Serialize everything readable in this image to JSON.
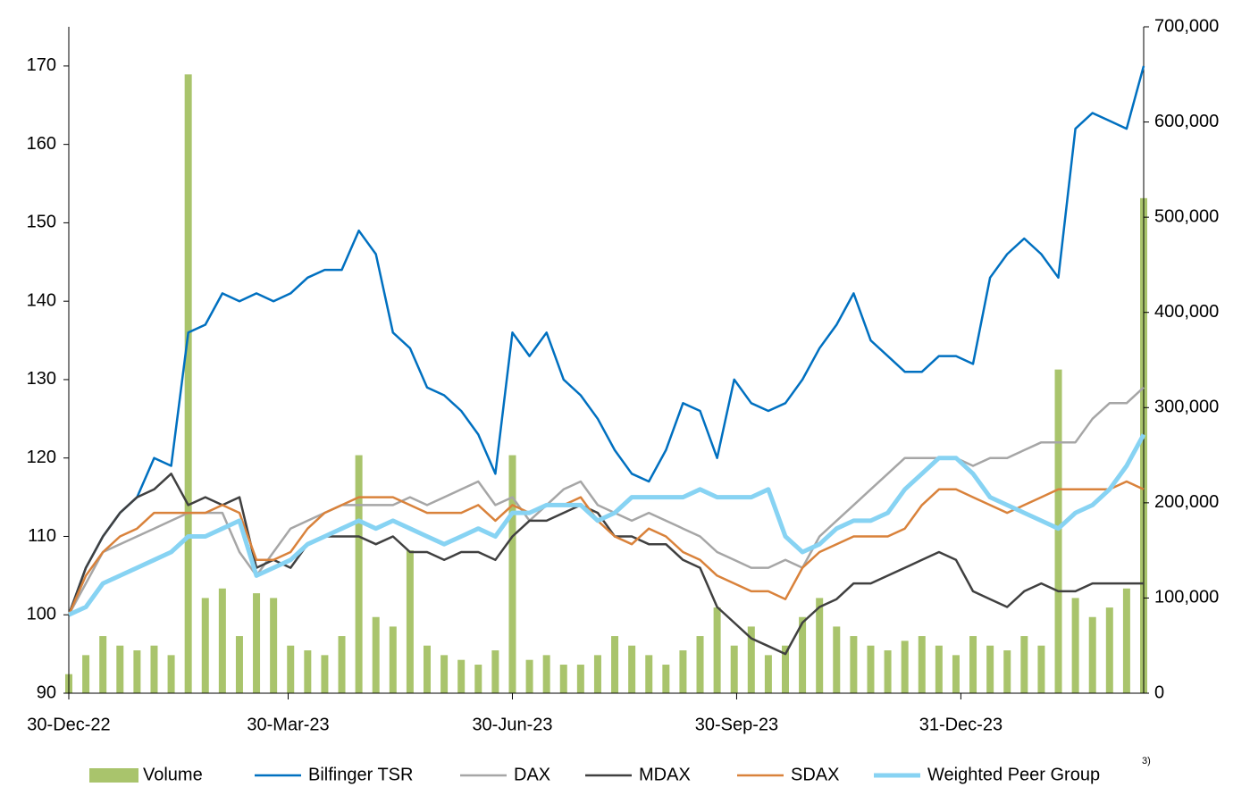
{
  "chart_data": {
    "type": "line",
    "x": [
      "2022-12-30",
      "2023-01-06",
      "2023-01-13",
      "2023-01-20",
      "2023-01-27",
      "2023-02-03",
      "2023-02-10",
      "2023-02-17",
      "2023-02-24",
      "2023-03-03",
      "2023-03-10",
      "2023-03-17",
      "2023-03-24",
      "2023-03-31",
      "2023-04-07",
      "2023-04-14",
      "2023-04-21",
      "2023-04-28",
      "2023-05-05",
      "2023-05-12",
      "2023-05-19",
      "2023-05-26",
      "2023-06-02",
      "2023-06-09",
      "2023-06-16",
      "2023-06-23",
      "2023-06-30",
      "2023-07-07",
      "2023-07-14",
      "2023-07-21",
      "2023-07-28",
      "2023-08-04",
      "2023-08-11",
      "2023-08-18",
      "2023-08-25",
      "2023-09-01",
      "2023-09-08",
      "2023-09-15",
      "2023-09-22",
      "2023-09-29",
      "2023-10-06",
      "2023-10-13",
      "2023-10-20",
      "2023-10-27",
      "2023-11-03",
      "2023-11-10",
      "2023-11-17",
      "2023-11-24",
      "2023-12-01",
      "2023-12-08",
      "2023-12-15",
      "2023-12-22",
      "2023-12-29",
      "2024-01-05",
      "2024-01-12",
      "2024-01-19",
      "2024-01-26",
      "2024-02-02",
      "2024-02-09",
      "2024-02-16",
      "2024-02-23",
      "2024-03-01",
      "2024-03-08",
      "2024-03-15"
    ],
    "xlim": [
      "2022-12-30",
      "2024-03-15"
    ],
    "xticks": [
      {
        "value": "2022-12-30",
        "label": "30-Dec-22"
      },
      {
        "value": "2023-03-30",
        "label": "30-Mar-23"
      },
      {
        "value": "2023-06-30",
        "label": "30-Jun-23"
      },
      {
        "value": "2023-09-30",
        "label": "30-Sep-23"
      },
      {
        "value": "2023-12-31",
        "label": "31-Dec-23"
      }
    ],
    "ylim": [
      90,
      175
    ],
    "yticks": [
      90,
      100,
      110,
      120,
      130,
      140,
      150,
      160,
      170
    ],
    "y2lim": [
      0,
      700000
    ],
    "y2ticks": [
      0,
      {
        "value": 100000,
        "label": "100,000"
      },
      {
        "value": 200000,
        "label": "200,000"
      },
      {
        "value": 300000,
        "label": "300,000"
      },
      {
        "value": 400000,
        "label": "400,000"
      },
      {
        "value": 500000,
        "label": "500,000"
      },
      {
        "value": 600000,
        "label": "600,000"
      },
      {
        "value": 700000,
        "label": "700,000"
      }
    ],
    "series": [
      {
        "name": "Volume",
        "type": "bar",
        "axis": "y2",
        "color": "#a9c46c",
        "values": [
          20000,
          40000,
          60000,
          50000,
          45000,
          50000,
          40000,
          650000,
          100000,
          110000,
          60000,
          105000,
          100000,
          50000,
          45000,
          40000,
          60000,
          250000,
          80000,
          70000,
          150000,
          50000,
          40000,
          35000,
          30000,
          45000,
          250000,
          35000,
          40000,
          30000,
          30000,
          40000,
          60000,
          50000,
          40000,
          30000,
          45000,
          60000,
          90000,
          50000,
          70000,
          40000,
          50000,
          80000,
          100000,
          70000,
          60000,
          50000,
          45000,
          55000,
          60000,
          50000,
          40000,
          60000,
          50000,
          45000,
          60000,
          50000,
          340000,
          100000,
          80000,
          90000,
          110000,
          520000
        ]
      },
      {
        "name": "Bilfinger TSR",
        "color": "#0070c0",
        "width": 2.5,
        "values": [
          100,
          106,
          110,
          113,
          115,
          120,
          119,
          136,
          137,
          141,
          140,
          141,
          140,
          141,
          143,
          144,
          144,
          149,
          146,
          136,
          134,
          129,
          128,
          126,
          123,
          118,
          136,
          133,
          136,
          130,
          128,
          125,
          121,
          118,
          117,
          121,
          127,
          126,
          120,
          130,
          127,
          126,
          127,
          130,
          134,
          137,
          141,
          135,
          133,
          131,
          131,
          133,
          133,
          132,
          143,
          146,
          148,
          146,
          143,
          162,
          164,
          163,
          162,
          170
        ]
      },
      {
        "name": "DAX",
        "color": "#a6a6a6",
        "width": 2.5,
        "values": [
          100,
          104,
          108,
          109,
          110,
          111,
          112,
          113,
          113,
          113,
          108,
          105,
          108,
          111,
          112,
          113,
          114,
          114,
          114,
          114,
          115,
          114,
          115,
          116,
          117,
          114,
          115,
          112,
          114,
          116,
          117,
          114,
          113,
          112,
          113,
          112,
          111,
          110,
          108,
          107,
          106,
          106,
          107,
          106,
          110,
          112,
          114,
          116,
          118,
          120,
          120,
          120,
          120,
          119,
          120,
          120,
          121,
          122,
          122,
          122,
          125,
          127,
          127,
          129
        ]
      },
      {
        "name": "MDAX",
        "color": "#404040",
        "width": 2.5,
        "values": [
          100,
          106,
          110,
          113,
          115,
          116,
          118,
          114,
          115,
          114,
          115,
          106,
          107,
          106,
          109,
          110,
          110,
          110,
          109,
          110,
          108,
          108,
          107,
          108,
          108,
          107,
          110,
          112,
          112,
          113,
          114,
          113,
          110,
          110,
          109,
          109,
          107,
          106,
          101,
          99,
          97,
          96,
          95,
          99,
          101,
          102,
          104,
          104,
          105,
          106,
          107,
          108,
          107,
          103,
          102,
          101,
          103,
          104,
          103,
          103,
          104,
          104,
          104,
          104
        ]
      },
      {
        "name": "SDAX",
        "color": "#d9823b",
        "width": 2.5,
        "values": [
          100,
          105,
          108,
          110,
          111,
          113,
          113,
          113,
          113,
          114,
          113,
          107,
          107,
          108,
          111,
          113,
          114,
          115,
          115,
          115,
          114,
          113,
          113,
          113,
          114,
          112,
          114,
          113,
          114,
          114,
          115,
          112,
          110,
          109,
          111,
          110,
          108,
          107,
          105,
          104,
          103,
          103,
          102,
          106,
          108,
          109,
          110,
          110,
          110,
          111,
          114,
          116,
          116,
          115,
          114,
          113,
          114,
          115,
          116,
          116,
          116,
          116,
          117,
          116
        ]
      },
      {
        "name": "Weighted Peer Group",
        "color": "#87d3f3",
        "width": 5,
        "values": [
          100,
          101,
          104,
          105,
          106,
          107,
          108,
          110,
          110,
          111,
          112,
          105,
          106,
          107,
          109,
          110,
          111,
          112,
          111,
          112,
          111,
          110,
          109,
          110,
          111,
          110,
          113,
          113,
          114,
          114,
          114,
          112,
          113,
          115,
          115,
          115,
          115,
          116,
          115,
          115,
          115,
          116,
          110,
          108,
          109,
          111,
          112,
          112,
          113,
          116,
          118,
          120,
          120,
          118,
          115,
          114,
          113,
          112,
          111,
          113,
          114,
          116,
          119,
          123
        ]
      }
    ],
    "footnote": "3)"
  }
}
